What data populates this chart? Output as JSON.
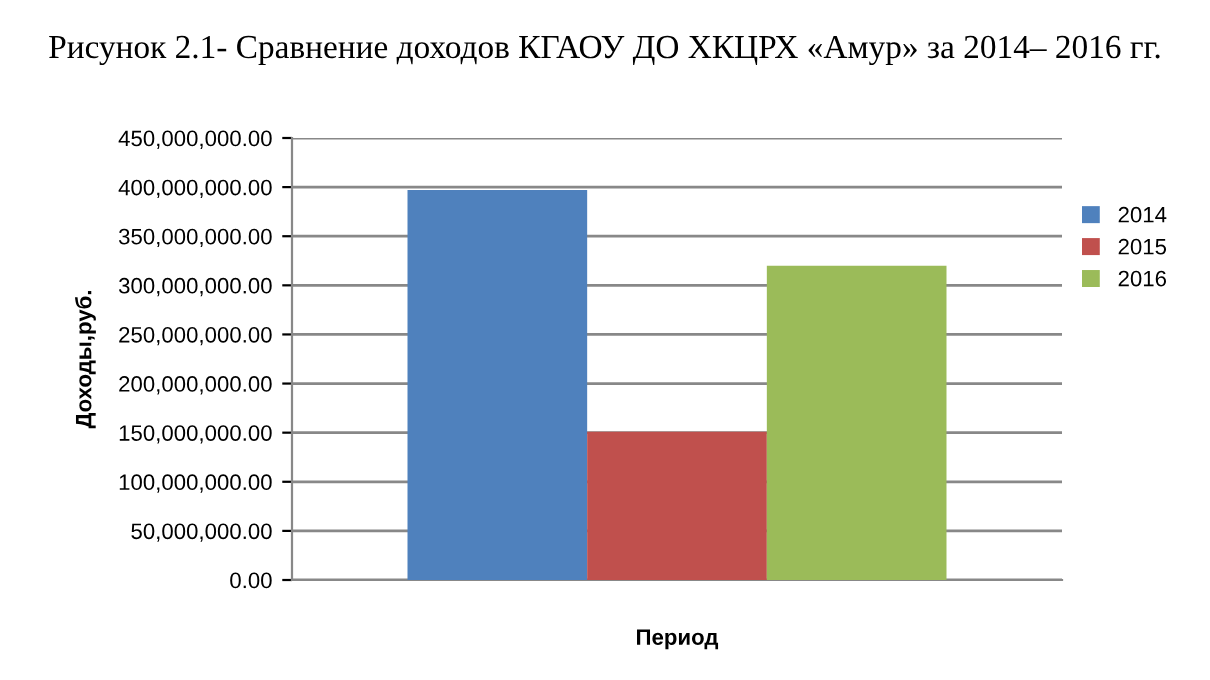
{
  "chart_data": {
    "type": "bar",
    "title": "Рисунок 2.1- Сравнение доходов КГАОУ ДО ХКЦРХ «Амур» за 2014– 2016 гг.",
    "xlabel": "Период",
    "ylabel": "Доходы,руб.",
    "categories": [
      null
    ],
    "series": [
      {
        "name": "2014",
        "color": "#4f81bd",
        "values": [
          397000000
        ]
      },
      {
        "name": "2015",
        "color": "#c0504d",
        "values": [
          151000000
        ]
      },
      {
        "name": "2016",
        "color": "#9bbb59",
        "values": [
          320000000
        ]
      }
    ],
    "ylim": [
      0,
      450000000
    ],
    "yticks": [
      {
        "value": 0,
        "label": "0.00"
      },
      {
        "value": 50000000,
        "label": "50,000,000.00"
      },
      {
        "value": 100000000,
        "label": "100,000,000.00"
      },
      {
        "value": 150000000,
        "label": "150,000,000.00"
      },
      {
        "value": 200000000,
        "label": "200,000,000.00"
      },
      {
        "value": 250000000,
        "label": "250,000,000.00"
      },
      {
        "value": 300000000,
        "label": "300,000,000.00"
      },
      {
        "value": 350000000,
        "label": "350,000,000.00"
      },
      {
        "value": 400000000,
        "label": "400,000,000.00"
      },
      {
        "value": 450000000,
        "label": "450,000,000.00"
      }
    ],
    "grid": "y",
    "legend": "right"
  }
}
